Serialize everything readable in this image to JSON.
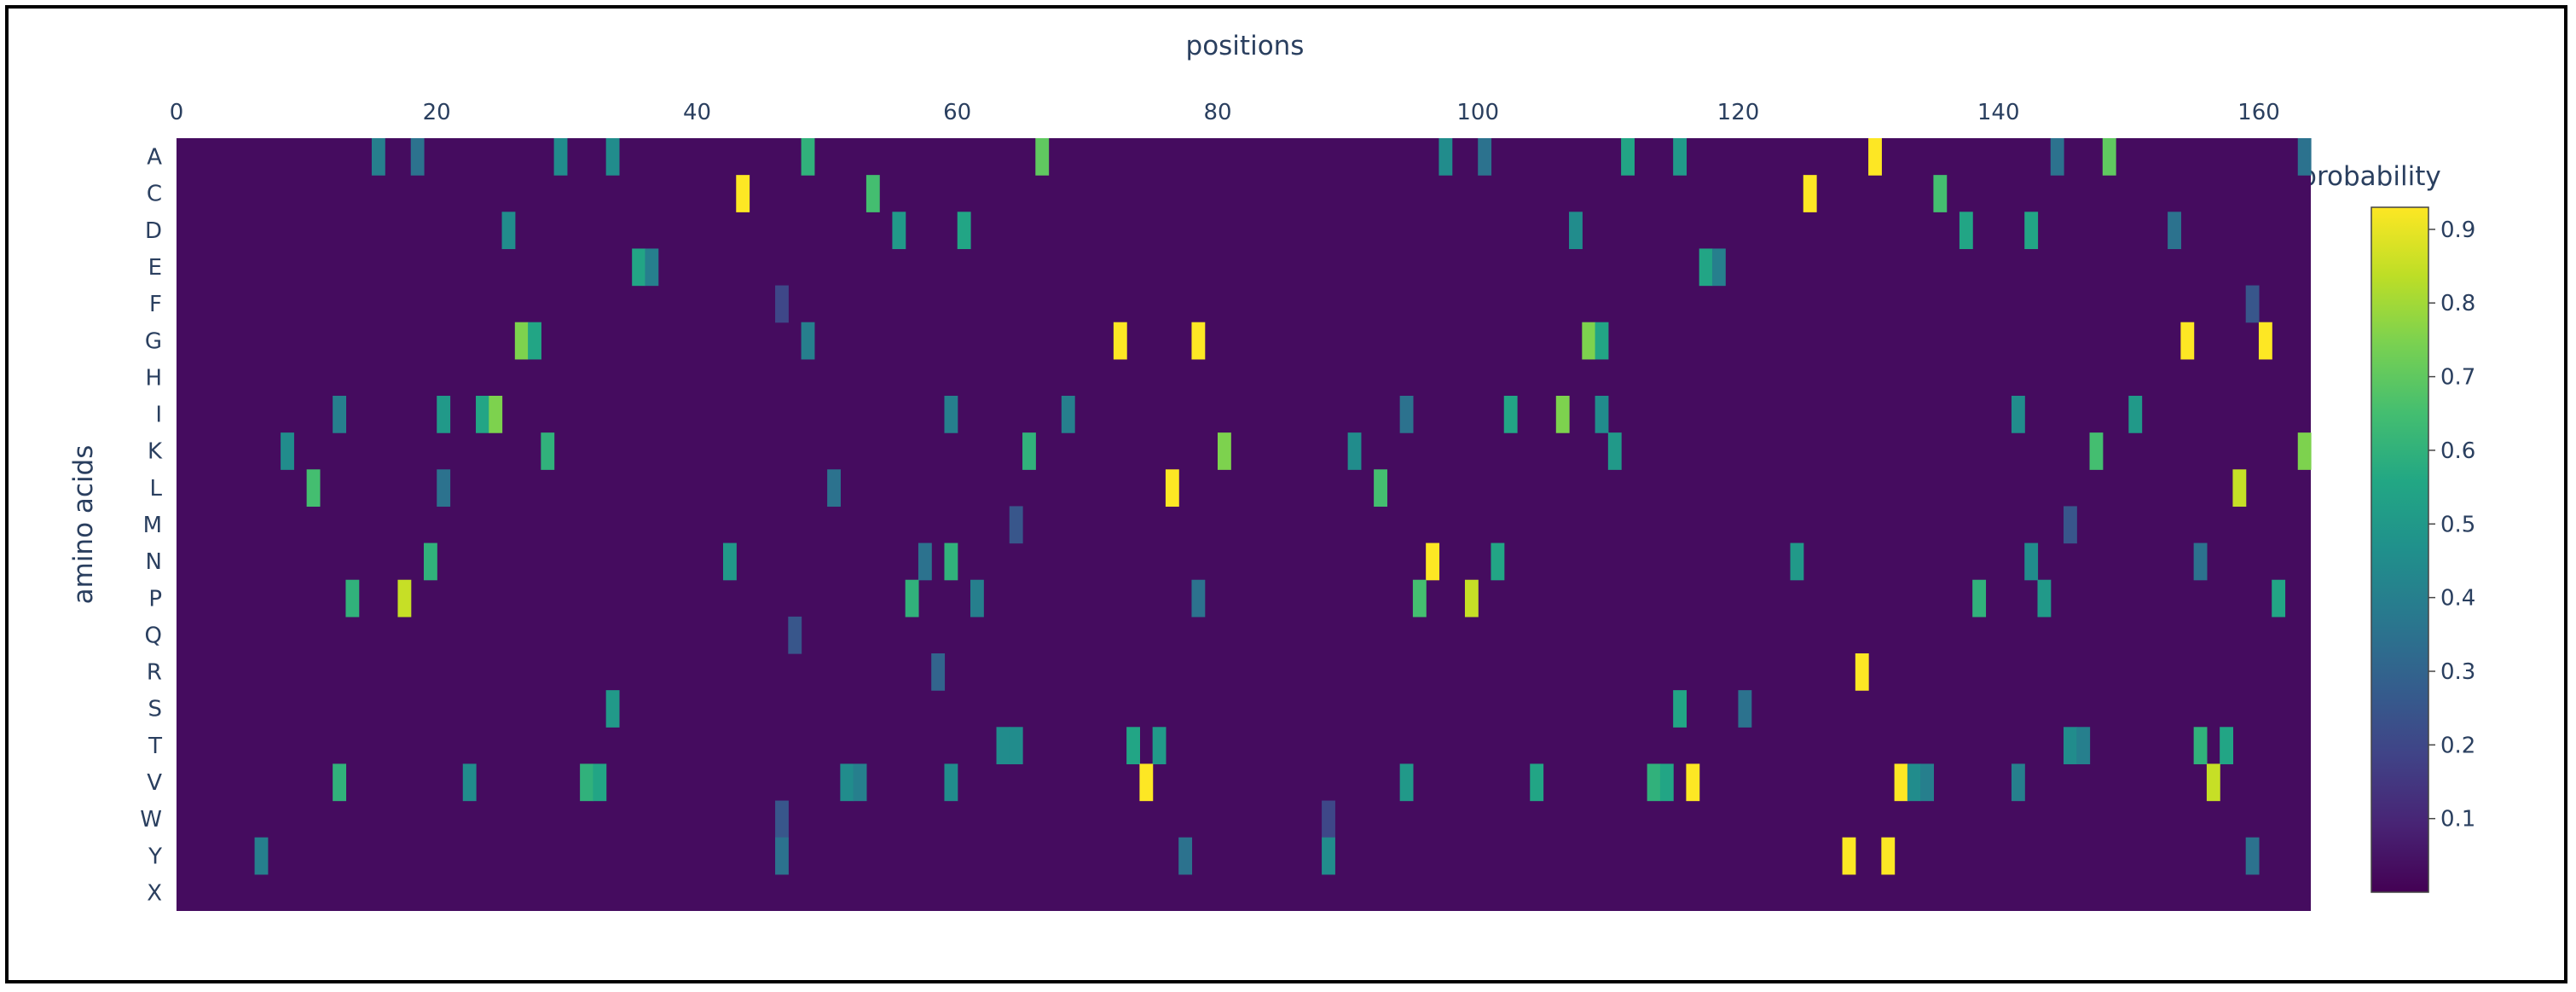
{
  "chart_data": {
    "type": "heatmap",
    "title": "",
    "xlabel": "positions",
    "ylabel": "amino acids",
    "x_axis_side": "top",
    "xlim": [
      0,
      164
    ],
    "x_ticks": [
      0,
      20,
      40,
      60,
      80,
      100,
      120,
      140,
      160
    ],
    "y_categories": [
      "A",
      "C",
      "D",
      "E",
      "F",
      "G",
      "H",
      "I",
      "K",
      "L",
      "M",
      "N",
      "P",
      "Q",
      "R",
      "S",
      "T",
      "V",
      "W",
      "Y",
      "X"
    ],
    "colorscale": "Viridis",
    "colorbar": {
      "title": "probability",
      "range": [
        0,
        0.93
      ],
      "ticks": [
        "0.1",
        "0.2",
        "0.3",
        "0.4",
        "0.5",
        "0.6",
        "0.7",
        "0.8",
        "0.9"
      ]
    },
    "background_level": 0.03,
    "highlights": [
      {
        "aa": "A",
        "pos": 15,
        "p": 0.4
      },
      {
        "aa": "A",
        "pos": 18,
        "p": 0.35
      },
      {
        "aa": "A",
        "pos": 29,
        "p": 0.45
      },
      {
        "aa": "A",
        "pos": 33,
        "p": 0.45
      },
      {
        "aa": "A",
        "pos": 48,
        "p": 0.6
      },
      {
        "aa": "A",
        "pos": 66,
        "p": 0.7
      },
      {
        "aa": "A",
        "pos": 97,
        "p": 0.45
      },
      {
        "aa": "A",
        "pos": 100,
        "p": 0.35
      },
      {
        "aa": "A",
        "pos": 111,
        "p": 0.55
      },
      {
        "aa": "A",
        "pos": 115,
        "p": 0.5
      },
      {
        "aa": "A",
        "pos": 130,
        "p": 0.93
      },
      {
        "aa": "A",
        "pos": 144,
        "p": 0.35
      },
      {
        "aa": "A",
        "pos": 148,
        "p": 0.7
      },
      {
        "aa": "A",
        "pos": 163,
        "p": 0.35
      },
      {
        "aa": "C",
        "pos": 43,
        "p": 0.93
      },
      {
        "aa": "C",
        "pos": 53,
        "p": 0.65
      },
      {
        "aa": "C",
        "pos": 125,
        "p": 0.93
      },
      {
        "aa": "C",
        "pos": 135,
        "p": 0.65
      },
      {
        "aa": "D",
        "pos": 25,
        "p": 0.45
      },
      {
        "aa": "D",
        "pos": 55,
        "p": 0.5
      },
      {
        "aa": "D",
        "pos": 60,
        "p": 0.55
      },
      {
        "aa": "D",
        "pos": 107,
        "p": 0.45
      },
      {
        "aa": "D",
        "pos": 137,
        "p": 0.55
      },
      {
        "aa": "D",
        "pos": 142,
        "p": 0.55
      },
      {
        "aa": "D",
        "pos": 153,
        "p": 0.35
      },
      {
        "aa": "E",
        "pos": 35,
        "p": 0.55
      },
      {
        "aa": "E",
        "pos": 36,
        "p": 0.4
      },
      {
        "aa": "E",
        "pos": 117,
        "p": 0.55
      },
      {
        "aa": "E",
        "pos": 118,
        "p": 0.4
      },
      {
        "aa": "F",
        "pos": 46,
        "p": 0.2
      },
      {
        "aa": "F",
        "pos": 159,
        "p": 0.25
      },
      {
        "aa": "G",
        "pos": 26,
        "p": 0.75
      },
      {
        "aa": "G",
        "pos": 27,
        "p": 0.55
      },
      {
        "aa": "G",
        "pos": 48,
        "p": 0.4
      },
      {
        "aa": "G",
        "pos": 72,
        "p": 0.93
      },
      {
        "aa": "G",
        "pos": 78,
        "p": 0.93
      },
      {
        "aa": "G",
        "pos": 108,
        "p": 0.75
      },
      {
        "aa": "G",
        "pos": 109,
        "p": 0.55
      },
      {
        "aa": "G",
        "pos": 154,
        "p": 0.93
      },
      {
        "aa": "G",
        "pos": 160,
        "p": 0.93
      },
      {
        "aa": "I",
        "pos": 12,
        "p": 0.4
      },
      {
        "aa": "I",
        "pos": 20,
        "p": 0.5
      },
      {
        "aa": "I",
        "pos": 23,
        "p": 0.55
      },
      {
        "aa": "I",
        "pos": 24,
        "p": 0.75
      },
      {
        "aa": "I",
        "pos": 59,
        "p": 0.4
      },
      {
        "aa": "I",
        "pos": 68,
        "p": 0.4
      },
      {
        "aa": "I",
        "pos": 94,
        "p": 0.35
      },
      {
        "aa": "I",
        "pos": 102,
        "p": 0.55
      },
      {
        "aa": "I",
        "pos": 106,
        "p": 0.75
      },
      {
        "aa": "I",
        "pos": 109,
        "p": 0.45
      },
      {
        "aa": "I",
        "pos": 141,
        "p": 0.45
      },
      {
        "aa": "I",
        "pos": 150,
        "p": 0.5
      },
      {
        "aa": "K",
        "pos": 8,
        "p": 0.45
      },
      {
        "aa": "K",
        "pos": 28,
        "p": 0.6
      },
      {
        "aa": "K",
        "pos": 65,
        "p": 0.6
      },
      {
        "aa": "K",
        "pos": 80,
        "p": 0.75
      },
      {
        "aa": "K",
        "pos": 90,
        "p": 0.45
      },
      {
        "aa": "K",
        "pos": 110,
        "p": 0.5
      },
      {
        "aa": "K",
        "pos": 147,
        "p": 0.65
      },
      {
        "aa": "K",
        "pos": 163,
        "p": 0.75
      },
      {
        "aa": "L",
        "pos": 10,
        "p": 0.65
      },
      {
        "aa": "L",
        "pos": 20,
        "p": 0.35
      },
      {
        "aa": "L",
        "pos": 50,
        "p": 0.35
      },
      {
        "aa": "L",
        "pos": 76,
        "p": 0.93
      },
      {
        "aa": "L",
        "pos": 92,
        "p": 0.65
      },
      {
        "aa": "L",
        "pos": 158,
        "p": 0.85
      },
      {
        "aa": "M",
        "pos": 64,
        "p": 0.25
      },
      {
        "aa": "M",
        "pos": 145,
        "p": 0.25
      },
      {
        "aa": "N",
        "pos": 19,
        "p": 0.6
      },
      {
        "aa": "N",
        "pos": 42,
        "p": 0.5
      },
      {
        "aa": "N",
        "pos": 57,
        "p": 0.35
      },
      {
        "aa": "N",
        "pos": 59,
        "p": 0.6
      },
      {
        "aa": "N",
        "pos": 96,
        "p": 0.93
      },
      {
        "aa": "N",
        "pos": 101,
        "p": 0.55
      },
      {
        "aa": "N",
        "pos": 124,
        "p": 0.5
      },
      {
        "aa": "N",
        "pos": 142,
        "p": 0.45
      },
      {
        "aa": "N",
        "pos": 155,
        "p": 0.35
      },
      {
        "aa": "P",
        "pos": 13,
        "p": 0.6
      },
      {
        "aa": "P",
        "pos": 17,
        "p": 0.85
      },
      {
        "aa": "P",
        "pos": 56,
        "p": 0.6
      },
      {
        "aa": "P",
        "pos": 61,
        "p": 0.4
      },
      {
        "aa": "P",
        "pos": 78,
        "p": 0.35
      },
      {
        "aa": "P",
        "pos": 95,
        "p": 0.65
      },
      {
        "aa": "P",
        "pos": 99,
        "p": 0.85
      },
      {
        "aa": "P",
        "pos": 138,
        "p": 0.6
      },
      {
        "aa": "P",
        "pos": 143,
        "p": 0.5
      },
      {
        "aa": "P",
        "pos": 161,
        "p": 0.55
      },
      {
        "aa": "Q",
        "pos": 47,
        "p": 0.25
      },
      {
        "aa": "R",
        "pos": 129,
        "p": 0.93
      },
      {
        "aa": "R",
        "pos": 58,
        "p": 0.3
      },
      {
        "aa": "S",
        "pos": 33,
        "p": 0.5
      },
      {
        "aa": "S",
        "pos": 115,
        "p": 0.55
      },
      {
        "aa": "S",
        "pos": 120,
        "p": 0.35
      },
      {
        "aa": "T",
        "pos": 63,
        "p": 0.45
      },
      {
        "aa": "T",
        "pos": 64,
        "p": 0.45
      },
      {
        "aa": "T",
        "pos": 73,
        "p": 0.55
      },
      {
        "aa": "T",
        "pos": 75,
        "p": 0.5
      },
      {
        "aa": "T",
        "pos": 145,
        "p": 0.45
      },
      {
        "aa": "T",
        "pos": 146,
        "p": 0.4
      },
      {
        "aa": "T",
        "pos": 155,
        "p": 0.6
      },
      {
        "aa": "T",
        "pos": 157,
        "p": 0.55
      },
      {
        "aa": "V",
        "pos": 12,
        "p": 0.6
      },
      {
        "aa": "V",
        "pos": 22,
        "p": 0.45
      },
      {
        "aa": "V",
        "pos": 31,
        "p": 0.6
      },
      {
        "aa": "V",
        "pos": 32,
        "p": 0.55
      },
      {
        "aa": "V",
        "pos": 51,
        "p": 0.45
      },
      {
        "aa": "V",
        "pos": 52,
        "p": 0.4
      },
      {
        "aa": "V",
        "pos": 59,
        "p": 0.45
      },
      {
        "aa": "V",
        "pos": 74,
        "p": 0.93
      },
      {
        "aa": "V",
        "pos": 94,
        "p": 0.5
      },
      {
        "aa": "V",
        "pos": 104,
        "p": 0.55
      },
      {
        "aa": "V",
        "pos": 113,
        "p": 0.6
      },
      {
        "aa": "V",
        "pos": 114,
        "p": 0.55
      },
      {
        "aa": "V",
        "pos": 116,
        "p": 0.93
      },
      {
        "aa": "V",
        "pos": 132,
        "p": 0.93
      },
      {
        "aa": "V",
        "pos": 133,
        "p": 0.45
      },
      {
        "aa": "V",
        "pos": 134,
        "p": 0.4
      },
      {
        "aa": "V",
        "pos": 141,
        "p": 0.4
      },
      {
        "aa": "V",
        "pos": 156,
        "p": 0.85
      },
      {
        "aa": "W",
        "pos": 46,
        "p": 0.25
      },
      {
        "aa": "W",
        "pos": 88,
        "p": 0.2
      },
      {
        "aa": "Y",
        "pos": 6,
        "p": 0.4
      },
      {
        "aa": "Y",
        "pos": 46,
        "p": 0.35
      },
      {
        "aa": "Y",
        "pos": 77,
        "p": 0.35
      },
      {
        "aa": "Y",
        "pos": 88,
        "p": 0.45
      },
      {
        "aa": "Y",
        "pos": 128,
        "p": 0.93
      },
      {
        "aa": "Y",
        "pos": 131,
        "p": 0.93
      },
      {
        "aa": "Y",
        "pos": 159,
        "p": 0.35
      }
    ]
  }
}
